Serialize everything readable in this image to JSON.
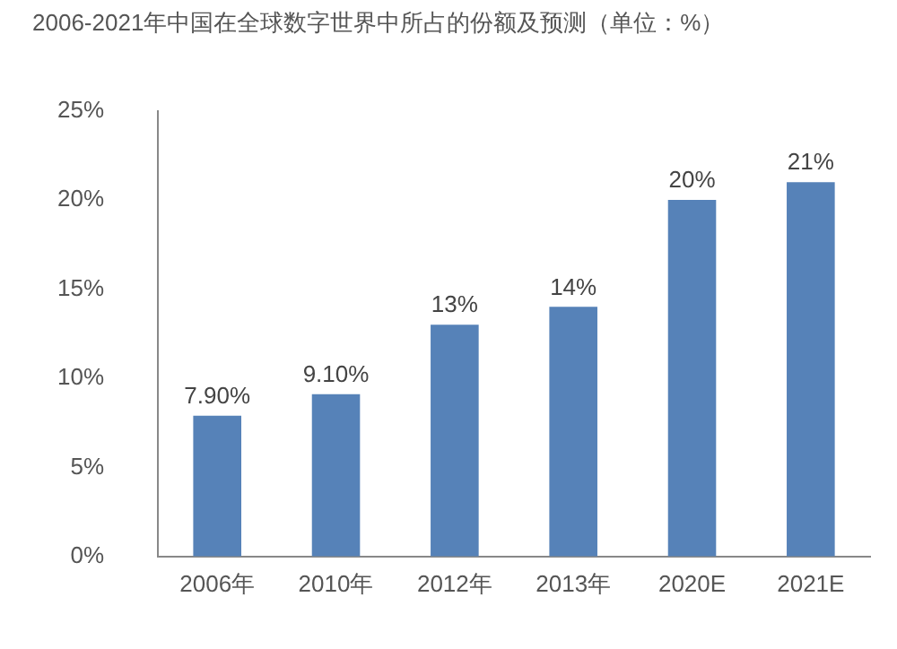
{
  "chart_data": {
    "type": "bar",
    "title": "2006-2021年中国在全球数字世界中所占的份额及预测（单位：%）",
    "categories": [
      "2006年",
      "2010年",
      "2012年",
      "2013年",
      "2020E",
      "2021E"
    ],
    "values": [
      7.9,
      9.1,
      13,
      14,
      20,
      21
    ],
    "value_labels": [
      "7.90%",
      "9.10%",
      "13%",
      "14%",
      "20%",
      "21%"
    ],
    "color": "#5682b8",
    "ylim": [
      0,
      25
    ],
    "yticks": [
      {
        "value": 0,
        "label": "0%"
      },
      {
        "value": 5,
        "label": "5%"
      },
      {
        "value": 10,
        "label": "10%"
      },
      {
        "value": 15,
        "label": "15%"
      },
      {
        "value": 20,
        "label": "20%"
      },
      {
        "value": 25,
        "label": "25%"
      }
    ],
    "grid": false,
    "legend": false
  }
}
